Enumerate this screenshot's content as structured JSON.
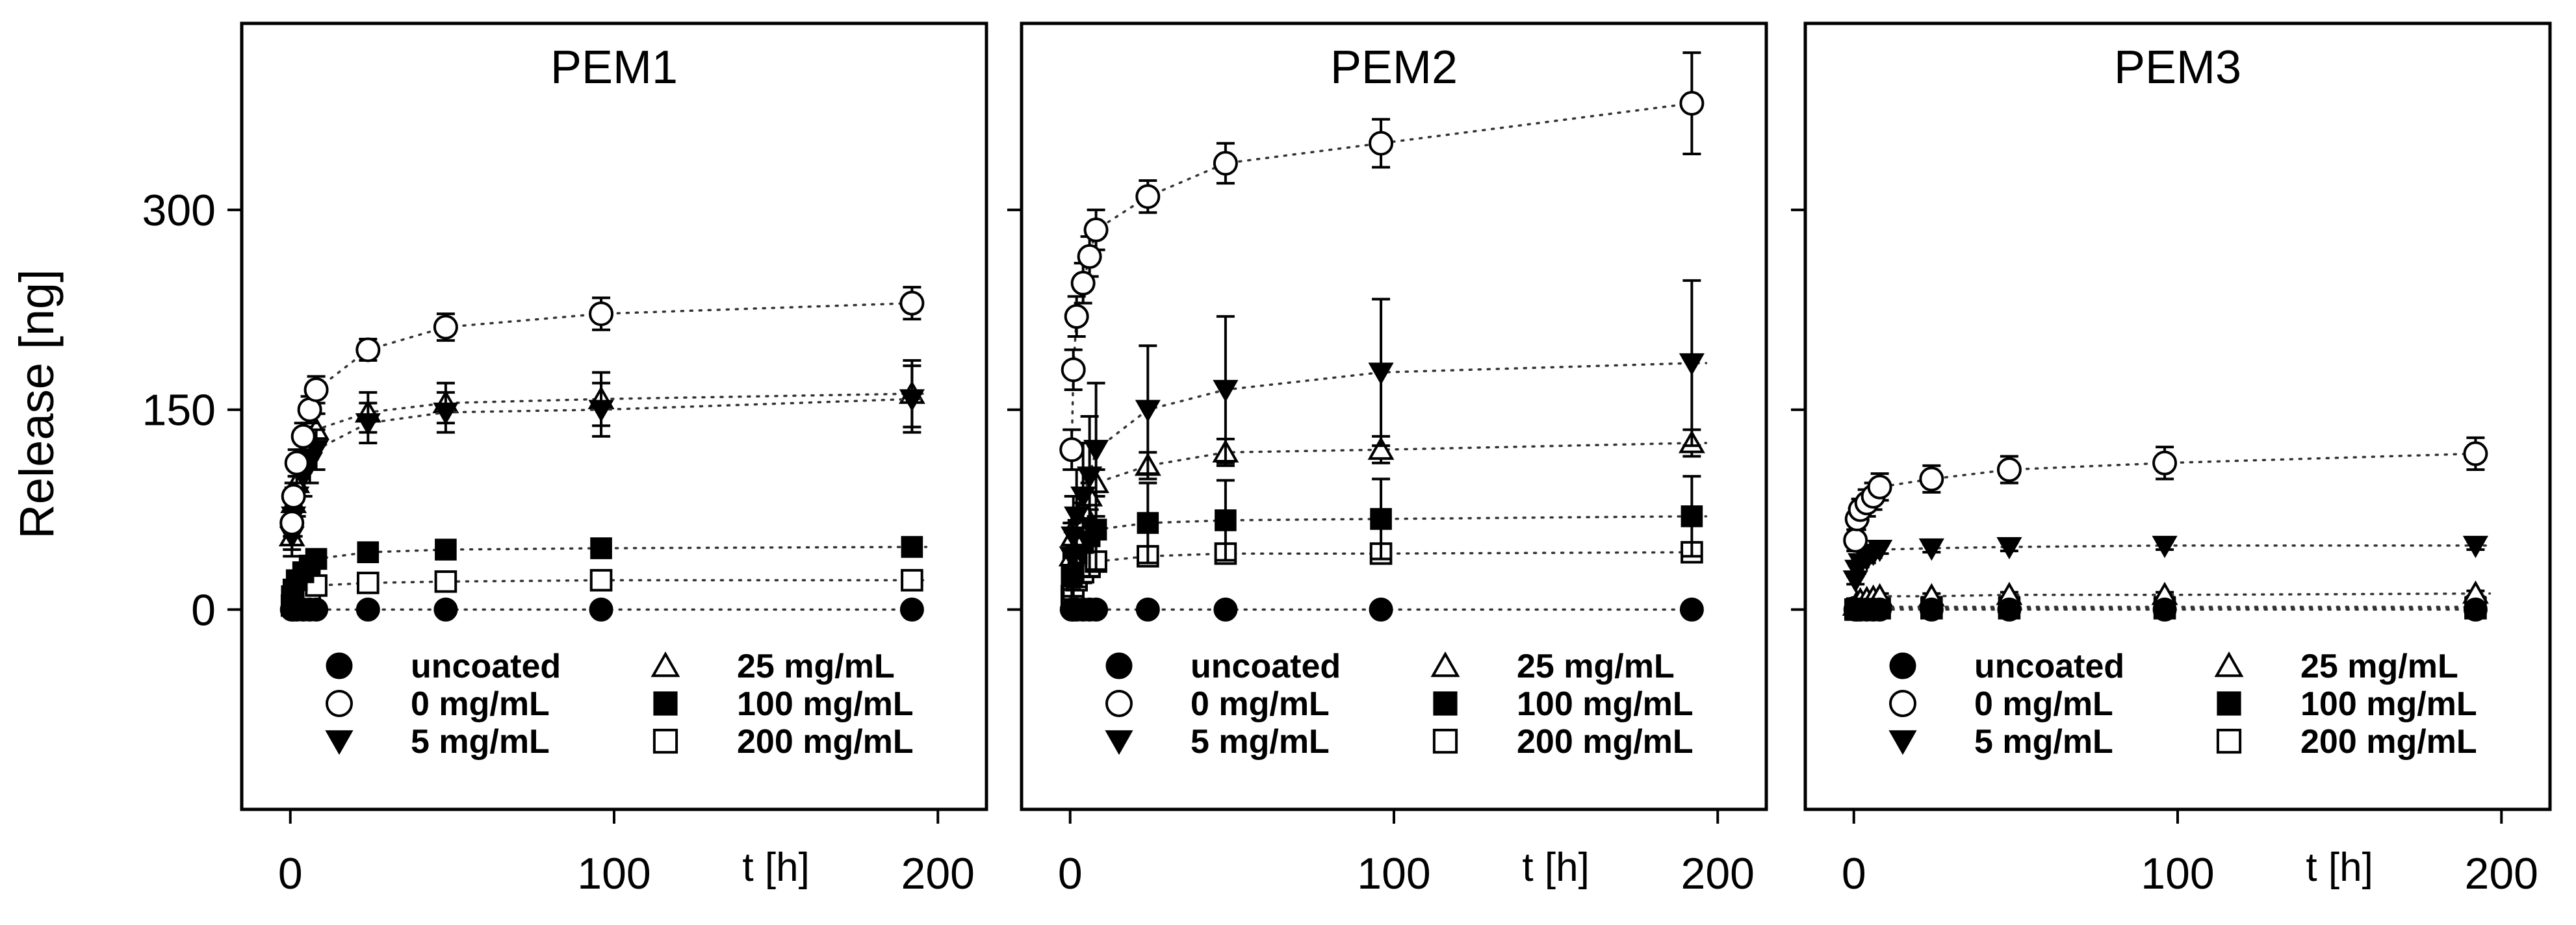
{
  "chart_data": {
    "type": "scatter",
    "ylabel": "Release [ng]",
    "xlabel": "t [h]",
    "xlim": [
      -15,
      215
    ],
    "ylim": [
      -150,
      440
    ],
    "x_ticks": [
      0,
      100,
      200
    ],
    "y_ticks": [
      0,
      150,
      300
    ],
    "x_tick_labels": [
      "0",
      "100",
      "200"
    ],
    "y_tick_labels": [
      "0",
      "150",
      "300"
    ],
    "grid": false,
    "fit_lines": "dotted",
    "legend_placement": "bottom-center of each panel",
    "colors": {
      "marker": "#000000",
      "fit": "#333333",
      "axes": "#000000"
    },
    "series_styles": [
      {
        "name": "uncoated",
        "marker": "filled-circle"
      },
      {
        "name": "0 mg/mL",
        "marker": "open-circle"
      },
      {
        "name": "5 mg/mL",
        "marker": "filled-triangle-down"
      },
      {
        "name": "25 mg/mL",
        "marker": "open-triangle-up"
      },
      {
        "name": "100 mg/mL",
        "marker": "filled-square"
      },
      {
        "name": "200 mg/mL",
        "marker": "open-square"
      }
    ],
    "legend": [
      "uncoated",
      "0 mg/mL",
      "5 mg/mL",
      "25 mg/mL",
      "100 mg/mL",
      "200 mg/mL"
    ],
    "panels": [
      {
        "title": "PEM1",
        "series": [
          {
            "name": "uncoated",
            "x": [
              0.5,
              1,
              2,
              4,
              6,
              8,
              24,
              48,
              96,
              192
            ],
            "y": [
              0,
              0,
              0,
              0,
              0,
              0,
              0,
              0,
              0,
              0
            ],
            "err": [
              0,
              0,
              0,
              0,
              0,
              0,
              0,
              0,
              0,
              0
            ]
          },
          {
            "name": "0 mg/mL",
            "x": [
              0.5,
              1,
              2,
              4,
              6,
              8,
              24,
              48,
              96,
              192
            ],
            "y": [
              65,
              85,
              110,
              130,
              150,
              165,
              195,
              212,
              222,
              230
            ],
            "err": [
              10,
              10,
              10,
              10,
              10,
              10,
              8,
              10,
              12,
              12
            ]
          },
          {
            "name": "5 mg/mL",
            "x": [
              0.5,
              1,
              2,
              4,
              6,
              8,
              24,
              48,
              96,
              192
            ],
            "y": [
              55,
              70,
              85,
              100,
              110,
              120,
              140,
              148,
              150,
              158
            ],
            "err": [
              15,
              15,
              15,
              15,
              15,
              15,
              15,
              15,
              20,
              25
            ]
          },
          {
            "name": "25 mg/mL",
            "x": [
              0.5,
              1,
              2,
              4,
              6,
              8,
              24,
              48,
              96,
              192
            ],
            "y": [
              55,
              80,
              95,
              115,
              125,
              135,
              148,
              155,
              158,
              162
            ],
            "err": [
              10,
              10,
              10,
              12,
              12,
              12,
              15,
              15,
              20,
              25
            ]
          },
          {
            "name": "100 mg/mL",
            "x": [
              0.5,
              1,
              2,
              4,
              6,
              8,
              24,
              48,
              96,
              192
            ],
            "y": [
              10,
              15,
              22,
              28,
              33,
              38,
              43,
              45,
              46,
              47
            ],
            "err": [
              3,
              3,
              3,
              3,
              3,
              3,
              3,
              3,
              3,
              3
            ]
          },
          {
            "name": "200 mg/mL",
            "x": [
              0.5,
              1,
              2,
              4,
              6,
              8,
              24,
              48,
              96,
              192
            ],
            "y": [
              3,
              5,
              8,
              12,
              15,
              18,
              20,
              21,
              22,
              22
            ],
            "err": [
              2,
              2,
              2,
              2,
              2,
              2,
              2,
              2,
              2,
              2
            ]
          }
        ]
      },
      {
        "title": "PEM2",
        "series": [
          {
            "name": "uncoated",
            "x": [
              0.5,
              1,
              2,
              4,
              6,
              8,
              24,
              48,
              96,
              192
            ],
            "y": [
              0,
              0,
              0,
              0,
              0,
              0,
              0,
              0,
              0,
              0
            ],
            "err": [
              0,
              0,
              0,
              0,
              0,
              0,
              0,
              0,
              0,
              0
            ]
          },
          {
            "name": "0 mg/mL",
            "x": [
              0.5,
              1,
              2,
              4,
              6,
              8,
              24,
              48,
              96,
              192
            ],
            "y": [
              120,
              180,
              220,
              245,
              265,
              285,
              310,
              335,
              350,
              380
            ],
            "err": [
              15,
              15,
              15,
              15,
              15,
              15,
              12,
              15,
              18,
              38
            ]
          },
          {
            "name": "5 mg/mL",
            "x": [
              0.5,
              1,
              2,
              4,
              6,
              8,
              24,
              48,
              96,
              192
            ],
            "y": [
              40,
              55,
              70,
              85,
              100,
              120,
              150,
              165,
              178,
              185
            ],
            "err": [
              25,
              30,
              35,
              40,
              45,
              50,
              48,
              55,
              55,
              62
            ]
          },
          {
            "name": "25 mg/mL",
            "x": [
              0.5,
              1,
              2,
              4,
              6,
              8,
              24,
              48,
              96,
              192
            ],
            "y": [
              40,
              55,
              65,
              75,
              85,
              95,
              108,
              118,
              120,
              125
            ],
            "err": [
              10,
              10,
              10,
              10,
              10,
              10,
              10,
              10,
              10,
              10
            ]
          },
          {
            "name": "100 mg/mL",
            "x": [
              0.5,
              1,
              2,
              4,
              6,
              8,
              24,
              48,
              96,
              192
            ],
            "y": [
              25,
              35,
              42,
              50,
              55,
              60,
              65,
              67,
              68,
              70
            ],
            "err": [
              20,
              25,
              25,
              30,
              30,
              30,
              30,
              30,
              30,
              30
            ]
          },
          {
            "name": "200 mg/mL",
            "x": [
              0.5,
              1,
              2,
              4,
              6,
              8,
              24,
              48,
              96,
              192
            ],
            "y": [
              10,
              15,
              22,
              28,
              32,
              36,
              40,
              42,
              42,
              43
            ],
            "err": [
              5,
              5,
              5,
              5,
              5,
              5,
              5,
              5,
              5,
              5
            ]
          }
        ]
      },
      {
        "title": "PEM3",
        "series": [
          {
            "name": "uncoated",
            "x": [
              0.5,
              1,
              2,
              4,
              6,
              8,
              24,
              48,
              96,
              192
            ],
            "y": [
              0,
              0,
              0,
              0,
              0,
              0,
              0,
              0,
              0,
              0
            ],
            "err": [
              0,
              0,
              0,
              0,
              0,
              0,
              0,
              0,
              0,
              0
            ]
          },
          {
            "name": "0 mg/mL",
            "x": [
              0.5,
              1,
              2,
              4,
              6,
              8,
              24,
              48,
              96,
              192
            ],
            "y": [
              52,
              68,
              75,
              80,
              85,
              92,
              98,
              105,
              110,
              117
            ],
            "err": [
              8,
              8,
              8,
              10,
              10,
              10,
              10,
              10,
              12,
              12
            ]
          },
          {
            "name": "5 mg/mL",
            "x": [
              0.5,
              1,
              2,
              4,
              6,
              8,
              24,
              48,
              96,
              192
            ],
            "y": [
              22,
              30,
              35,
              38,
              42,
              45,
              46,
              47,
              48,
              48
            ],
            "err": [
              3,
              3,
              3,
              3,
              3,
              3,
              3,
              3,
              3,
              3
            ]
          },
          {
            "name": "25 mg/mL",
            "x": [
              0.5,
              1,
              2,
              4,
              6,
              8,
              24,
              48,
              96,
              192
            ],
            "y": [
              3,
              5,
              7,
              8,
              9,
              10,
              10,
              11,
              11,
              12
            ],
            "err": [
              2,
              2,
              2,
              2,
              2,
              2,
              2,
              2,
              2,
              2
            ]
          },
          {
            "name": "100 mg/mL",
            "x": [
              0.5,
              1,
              2,
              4,
              6,
              8,
              24,
              48,
              96,
              192
            ],
            "y": [
              0,
              1,
              1,
              1,
              2,
              2,
              2,
              2,
              2,
              2
            ],
            "err": [
              1,
              1,
              1,
              1,
              1,
              1,
              1,
              1,
              1,
              1
            ]
          },
          {
            "name": "200 mg/mL",
            "x": [
              0.5,
              1,
              2,
              4,
              6,
              8,
              24,
              48,
              96,
              192
            ],
            "y": [
              0,
              0,
              1,
              1,
              1,
              1,
              1,
              1,
              1,
              1
            ],
            "err": [
              1,
              1,
              1,
              1,
              1,
              1,
              1,
              1,
              1,
              1
            ]
          }
        ]
      }
    ]
  }
}
